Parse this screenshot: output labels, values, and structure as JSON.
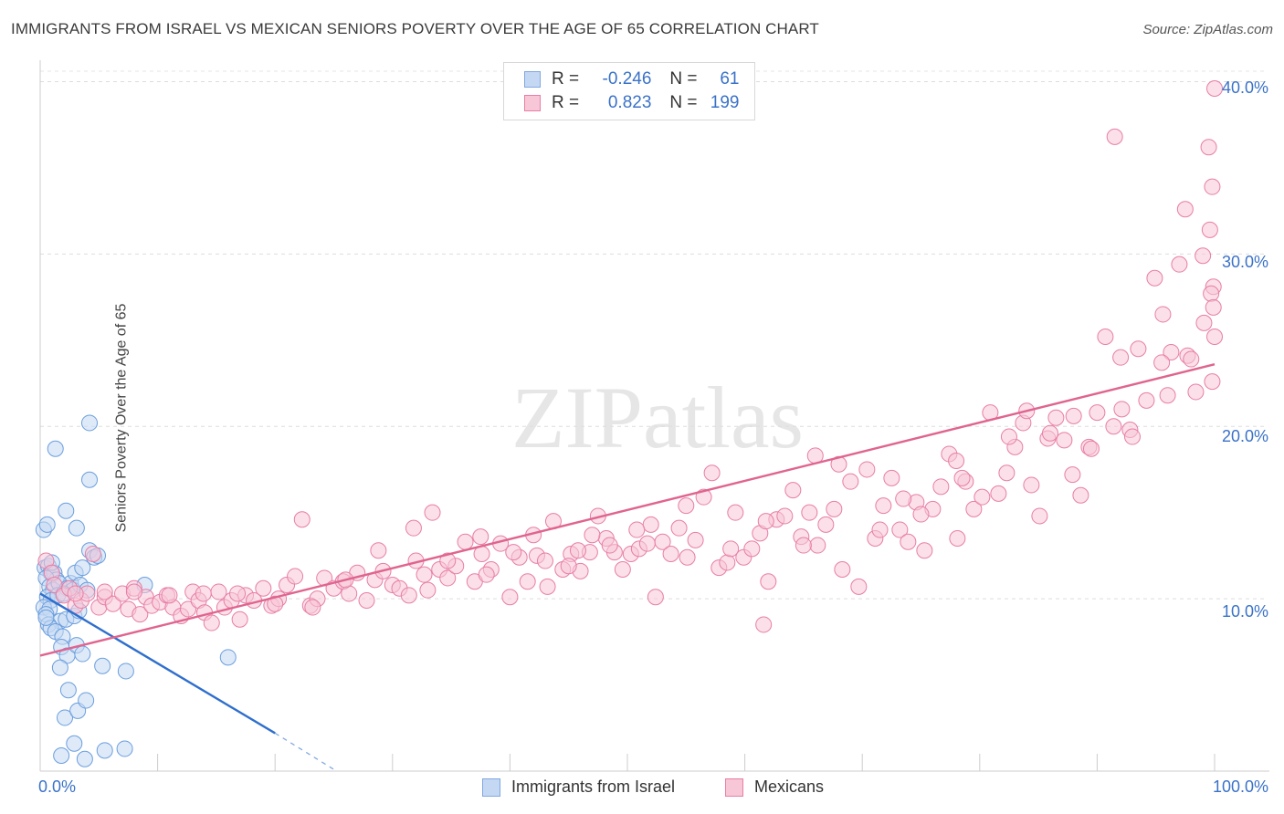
{
  "title": "IMMIGRANTS FROM ISRAEL VS MEXICAN SENIORS POVERTY OVER THE AGE OF 65 CORRELATION CHART",
  "source": "Source: ZipAtlas.com",
  "watermark": "ZIPatlas",
  "legend": {
    "rows": [
      {
        "r_label": "R =",
        "r_value": "-0.246",
        "n_label": "N =",
        "n_value": "61",
        "color": "#7fa8e0",
        "fill": "#c5d8f3"
      },
      {
        "r_label": "R =",
        "r_value": "0.823",
        "n_label": "N =",
        "n_value": "199",
        "color": "#e87ea5",
        "fill": "#f7c6d7"
      }
    ]
  },
  "bottom_legend": [
    "Immigrants from Israel",
    "Mexicans"
  ],
  "chart_data": {
    "type": "scatter",
    "title": "IMMIGRANTS FROM ISRAEL VS MEXICAN SENIORS POVERTY OVER THE AGE OF 65 CORRELATION CHART",
    "xlabel": "",
    "ylabel": "Seniors Poverty Over the Age of 65",
    "x_tick_labels": [
      "0.0%",
      "100.0%"
    ],
    "y_tick_labels": [
      "10.0%",
      "20.0%",
      "30.0%",
      "40.0%"
    ],
    "xlim": [
      0,
      100
    ],
    "ylim": [
      0,
      40.5
    ],
    "grid": true,
    "legend_position": "top-center",
    "series": [
      {
        "name": "Immigrants from Israel",
        "color": "#6a9ede",
        "fill": "#c5d8f3",
        "trend_color": "#2f6fcd",
        "trend": {
          "x0": 0,
          "y0": 10.3,
          "x1": 20,
          "y1": 2.2,
          "dash_to_x": 25,
          "dash_to_y": 0.1
        },
        "points": [
          [
            0.3,
            14.0
          ],
          [
            0.6,
            14.3
          ],
          [
            1.3,
            18.7
          ],
          [
            2.2,
            15.1
          ],
          [
            3.1,
            14.1
          ],
          [
            4.2,
            12.8
          ],
          [
            4.6,
            12.4
          ],
          [
            4.9,
            12.5
          ],
          [
            0.4,
            11.8
          ],
          [
            0.7,
            11.9
          ],
          [
            0.9,
            11.5
          ],
          [
            1.2,
            11.5
          ],
          [
            1.4,
            11.1
          ],
          [
            2.6,
            10.9
          ],
          [
            3.0,
            11.5
          ],
          [
            0.5,
            11.2
          ],
          [
            0.8,
            10.7
          ],
          [
            1.1,
            10.5
          ],
          [
            1.6,
            10.9
          ],
          [
            2.3,
            10.6
          ],
          [
            2.8,
            10.5
          ],
          [
            3.4,
            10.8
          ],
          [
            3.6,
            11.8
          ],
          [
            0.6,
            10.1
          ],
          [
            0.9,
            9.9
          ],
          [
            1.5,
            10.2
          ],
          [
            2.0,
            10.3
          ],
          [
            0.3,
            9.5
          ],
          [
            0.8,
            9.4
          ],
          [
            0.5,
            9.1
          ],
          [
            1.7,
            8.7
          ],
          [
            0.7,
            8.5
          ],
          [
            0.9,
            8.3
          ],
          [
            1.3,
            8.1
          ],
          [
            1.9,
            7.8
          ],
          [
            0.5,
            8.9
          ],
          [
            2.2,
            8.8
          ],
          [
            2.9,
            9.0
          ],
          [
            3.3,
            9.3
          ],
          [
            4.0,
            10.5
          ],
          [
            1.8,
            7.2
          ],
          [
            2.3,
            6.7
          ],
          [
            3.1,
            7.3
          ],
          [
            3.6,
            6.8
          ],
          [
            1.7,
            6.0
          ],
          [
            2.4,
            4.7
          ],
          [
            2.1,
            3.1
          ],
          [
            3.2,
            3.5
          ],
          [
            3.9,
            4.1
          ],
          [
            2.9,
            1.6
          ],
          [
            1.8,
            0.9
          ],
          [
            3.8,
            0.7
          ],
          [
            5.5,
            1.2
          ],
          [
            7.2,
            1.3
          ],
          [
            8.9,
            10.8
          ],
          [
            7.3,
            5.8
          ],
          [
            5.3,
            6.1
          ],
          [
            16.0,
            6.6
          ],
          [
            4.2,
            16.9
          ],
          [
            4.2,
            20.2
          ],
          [
            1.0,
            12.1
          ]
        ]
      },
      {
        "name": "Mexicans",
        "color": "#e87ea5",
        "fill": "#f7c6d7",
        "trend_color": "#e0648f",
        "trend": {
          "x0": 0,
          "y0": 6.7,
          "x1": 100,
          "y1": 23.6
        },
        "points": [
          [
            0.5,
            12.2
          ],
          [
            1.0,
            11.5
          ],
          [
            1.2,
            10.8
          ],
          [
            2.0,
            10.2
          ],
          [
            2.5,
            10.6
          ],
          [
            3.0,
            9.6
          ],
          [
            3.5,
            9.9
          ],
          [
            4.0,
            10.3
          ],
          [
            4.5,
            12.6
          ],
          [
            5.0,
            9.5
          ],
          [
            5.5,
            10.1
          ],
          [
            6.2,
            9.7
          ],
          [
            7.0,
            10.3
          ],
          [
            7.5,
            9.4
          ],
          [
            8.0,
            10.6
          ],
          [
            8.5,
            9.1
          ],
          [
            9.0,
            10.1
          ],
          [
            9.5,
            9.6
          ],
          [
            10.2,
            9.8
          ],
          [
            10.8,
            10.2
          ],
          [
            11.3,
            9.5
          ],
          [
            12.0,
            9.0
          ],
          [
            12.6,
            9.4
          ],
          [
            13.0,
            10.4
          ],
          [
            13.5,
            9.9
          ],
          [
            14.0,
            9.2
          ],
          [
            14.6,
            8.6
          ],
          [
            15.2,
            10.4
          ],
          [
            15.7,
            9.5
          ],
          [
            16.3,
            9.9
          ],
          [
            17.0,
            8.8
          ],
          [
            17.5,
            10.2
          ],
          [
            18.2,
            9.9
          ],
          [
            19.0,
            10.6
          ],
          [
            19.7,
            9.6
          ],
          [
            20.3,
            10.0
          ],
          [
            21.0,
            10.8
          ],
          [
            21.7,
            11.3
          ],
          [
            22.3,
            14.6
          ],
          [
            23.0,
            9.6
          ],
          [
            23.6,
            10.0
          ],
          [
            24.2,
            11.2
          ],
          [
            25.0,
            10.6
          ],
          [
            25.8,
            11.0
          ],
          [
            26.3,
            10.3
          ],
          [
            27.0,
            11.5
          ],
          [
            27.8,
            9.9
          ],
          [
            28.5,
            11.1
          ],
          [
            29.2,
            11.6
          ],
          [
            30.0,
            10.8
          ],
          [
            30.6,
            10.6
          ],
          [
            31.4,
            10.2
          ],
          [
            32.0,
            12.2
          ],
          [
            32.7,
            11.4
          ],
          [
            33.4,
            15.0
          ],
          [
            34.0,
            11.7
          ],
          [
            34.7,
            11.2
          ],
          [
            35.4,
            11.9
          ],
          [
            36.2,
            13.3
          ],
          [
            37.0,
            11.0
          ],
          [
            37.6,
            12.6
          ],
          [
            38.4,
            11.7
          ],
          [
            39.2,
            13.2
          ],
          [
            40.0,
            10.1
          ],
          [
            40.8,
            12.4
          ],
          [
            41.5,
            11.0
          ],
          [
            42.3,
            12.5
          ],
          [
            43.0,
            12.2
          ],
          [
            43.7,
            14.5
          ],
          [
            44.5,
            11.7
          ],
          [
            45.2,
            12.6
          ],
          [
            46.0,
            11.6
          ],
          [
            46.8,
            12.7
          ],
          [
            47.5,
            14.8
          ],
          [
            48.2,
            13.5
          ],
          [
            48.9,
            12.7
          ],
          [
            49.6,
            11.7
          ],
          [
            50.3,
            12.6
          ],
          [
            51.0,
            12.9
          ],
          [
            51.7,
            13.2
          ],
          [
            52.4,
            10.1
          ],
          [
            53.0,
            13.3
          ],
          [
            53.7,
            12.6
          ],
          [
            54.4,
            14.1
          ],
          [
            55.1,
            12.4
          ],
          [
            55.8,
            13.4
          ],
          [
            56.5,
            15.9
          ],
          [
            57.2,
            17.3
          ],
          [
            57.8,
            11.8
          ],
          [
            58.5,
            12.1
          ],
          [
            59.2,
            15.0
          ],
          [
            59.9,
            12.4
          ],
          [
            60.6,
            12.9
          ],
          [
            61.3,
            13.8
          ],
          [
            62.0,
            11.0
          ],
          [
            62.7,
            14.6
          ],
          [
            63.4,
            14.8
          ],
          [
            64.1,
            16.3
          ],
          [
            64.8,
            13.6
          ],
          [
            65.5,
            15.0
          ],
          [
            66.2,
            13.1
          ],
          [
            66.9,
            14.3
          ],
          [
            67.6,
            15.2
          ],
          [
            68.3,
            11.7
          ],
          [
            69.0,
            16.8
          ],
          [
            69.7,
            10.7
          ],
          [
            70.4,
            17.5
          ],
          [
            71.1,
            13.5
          ],
          [
            71.8,
            15.4
          ],
          [
            72.5,
            17.0
          ],
          [
            73.2,
            14.0
          ],
          [
            73.9,
            13.3
          ],
          [
            74.6,
            15.6
          ],
          [
            75.3,
            12.8
          ],
          [
            76.0,
            15.2
          ],
          [
            76.7,
            16.5
          ],
          [
            77.4,
            18.4
          ],
          [
            78.1,
            13.5
          ],
          [
            78.8,
            16.8
          ],
          [
            79.5,
            15.2
          ],
          [
            80.2,
            15.9
          ],
          [
            80.9,
            20.8
          ],
          [
            81.6,
            16.1
          ],
          [
            82.3,
            17.3
          ],
          [
            83.0,
            18.8
          ],
          [
            83.7,
            20.2
          ],
          [
            84.4,
            16.6
          ],
          [
            85.1,
            14.8
          ],
          [
            85.8,
            19.3
          ],
          [
            86.5,
            20.5
          ],
          [
            87.2,
            19.2
          ],
          [
            87.9,
            17.2
          ],
          [
            88.6,
            16.0
          ],
          [
            89.3,
            18.8
          ],
          [
            90.0,
            20.8
          ],
          [
            90.7,
            25.2
          ],
          [
            91.4,
            20.0
          ],
          [
            92.1,
            21.0
          ],
          [
            92.8,
            19.8
          ],
          [
            93.5,
            24.5
          ],
          [
            94.2,
            21.5
          ],
          [
            94.9,
            28.6
          ],
          [
            95.6,
            26.5
          ],
          [
            96.3,
            24.3
          ],
          [
            97.0,
            29.4
          ],
          [
            97.7,
            24.1
          ],
          [
            98.4,
            22.0
          ],
          [
            99.1,
            26.0
          ],
          [
            99.8,
            22.6
          ],
          [
            91.5,
            36.8
          ],
          [
            97.5,
            32.6
          ],
          [
            99.0,
            29.9
          ],
          [
            99.5,
            36.2
          ],
          [
            99.8,
            33.9
          ],
          [
            99.6,
            31.4
          ],
          [
            99.9,
            28.1
          ],
          [
            99.7,
            27.7
          ],
          [
            99.9,
            26.9
          ],
          [
            100.0,
            39.6
          ],
          [
            98.0,
            23.9
          ],
          [
            95.5,
            23.7
          ],
          [
            93.0,
            19.4
          ],
          [
            89.5,
            18.7
          ],
          [
            86.0,
            19.6
          ],
          [
            82.5,
            19.4
          ],
          [
            78.5,
            17.0
          ],
          [
            75.0,
            14.9
          ],
          [
            71.5,
            14.0
          ],
          [
            68.0,
            17.8
          ],
          [
            65.0,
            13.1
          ],
          [
            61.8,
            14.5
          ],
          [
            58.8,
            12.9
          ],
          [
            55.0,
            15.4
          ],
          [
            52.0,
            14.3
          ],
          [
            48.5,
            13.1
          ],
          [
            45.8,
            12.8
          ],
          [
            43.2,
            10.7
          ],
          [
            40.3,
            12.7
          ],
          [
            37.5,
            13.6
          ],
          [
            34.7,
            12.2
          ],
          [
            31.8,
            14.1
          ],
          [
            28.8,
            12.8
          ],
          [
            26.0,
            11.1
          ],
          [
            23.2,
            9.5
          ],
          [
            20.0,
            9.7
          ],
          [
            16.8,
            10.3
          ],
          [
            13.9,
            10.3
          ],
          [
            11.0,
            10.2
          ],
          [
            8.0,
            10.4
          ],
          [
            5.5,
            10.4
          ],
          [
            3.0,
            10.3
          ],
          [
            61.6,
            8.5
          ],
          [
            45.0,
            11.9
          ],
          [
            50.8,
            14.0
          ],
          [
            66.0,
            18.3
          ],
          [
            73.5,
            15.8
          ],
          [
            78.0,
            18.0
          ],
          [
            84.0,
            20.9
          ],
          [
            88.0,
            20.6
          ],
          [
            92.0,
            24.0
          ],
          [
            96.0,
            21.8
          ],
          [
            100.0,
            25.2
          ],
          [
            33.0,
            10.5
          ],
          [
            38.0,
            11.4
          ],
          [
            42.0,
            13.7
          ],
          [
            47.0,
            13.7
          ]
        ]
      }
    ]
  }
}
